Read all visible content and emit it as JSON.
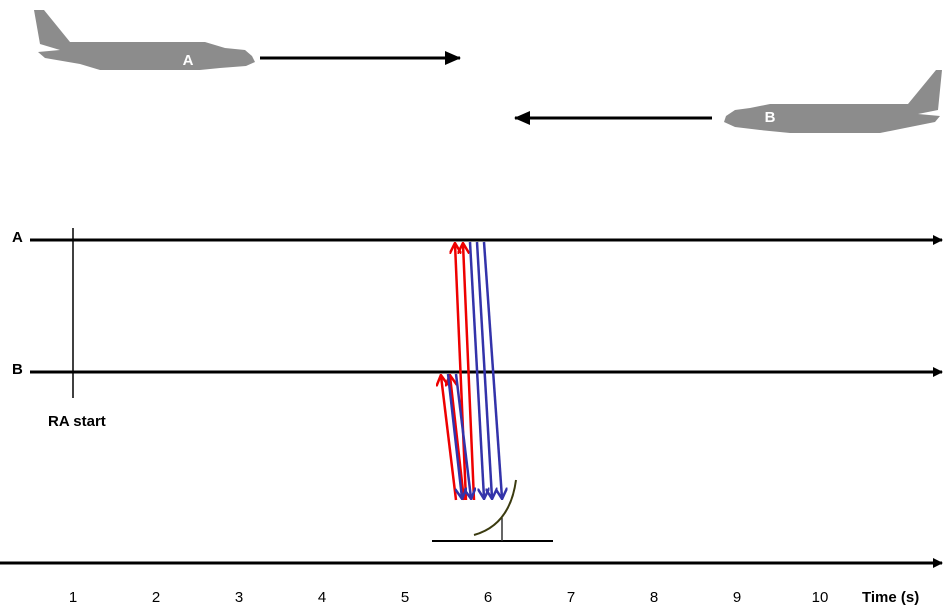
{
  "aircraft": [
    {
      "label": "A"
    },
    {
      "label": "B"
    }
  ],
  "timelines": [
    {
      "label": "A"
    },
    {
      "label": "B"
    }
  ],
  "marker": {
    "label": "RA start"
  },
  "time_axis": {
    "ticks": [
      1,
      2,
      3,
      4,
      5,
      6,
      7,
      8,
      9,
      10
    ],
    "label": "Time (s)"
  }
}
